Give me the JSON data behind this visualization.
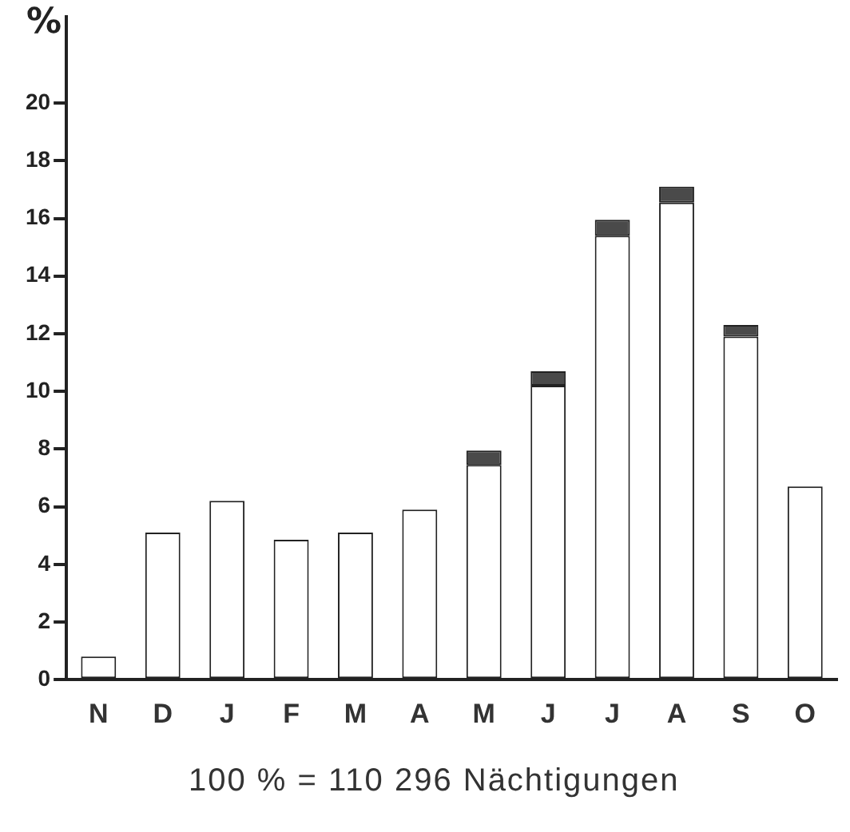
{
  "chart_data": {
    "type": "bar",
    "stacked": true,
    "ylabel": "%",
    "categories": [
      "N",
      "D",
      "J",
      "F",
      "M",
      "A",
      "M",
      "J",
      "J",
      "A",
      "S",
      "O"
    ],
    "series": [
      {
        "color": "#ffffff",
        "values": [
          0.8,
          5.1,
          6.2,
          4.85,
          5.1,
          5.9,
          7.45,
          10.2,
          15.4,
          16.55,
          11.9,
          6.7
        ]
      },
      {
        "color": "#4a4a4a",
        "values": [
          null,
          null,
          null,
          null,
          null,
          null,
          0.5,
          0.5,
          0.55,
          0.55,
          0.4,
          null
        ]
      }
    ],
    "ylim": [
      0,
      23
    ],
    "yticks": [
      0,
      2,
      4,
      6,
      8,
      10,
      12,
      14,
      16,
      18,
      20
    ],
    "grid": false,
    "legend": false,
    "annotations": [
      "100 % = 110 296 Nächtigungen"
    ]
  }
}
